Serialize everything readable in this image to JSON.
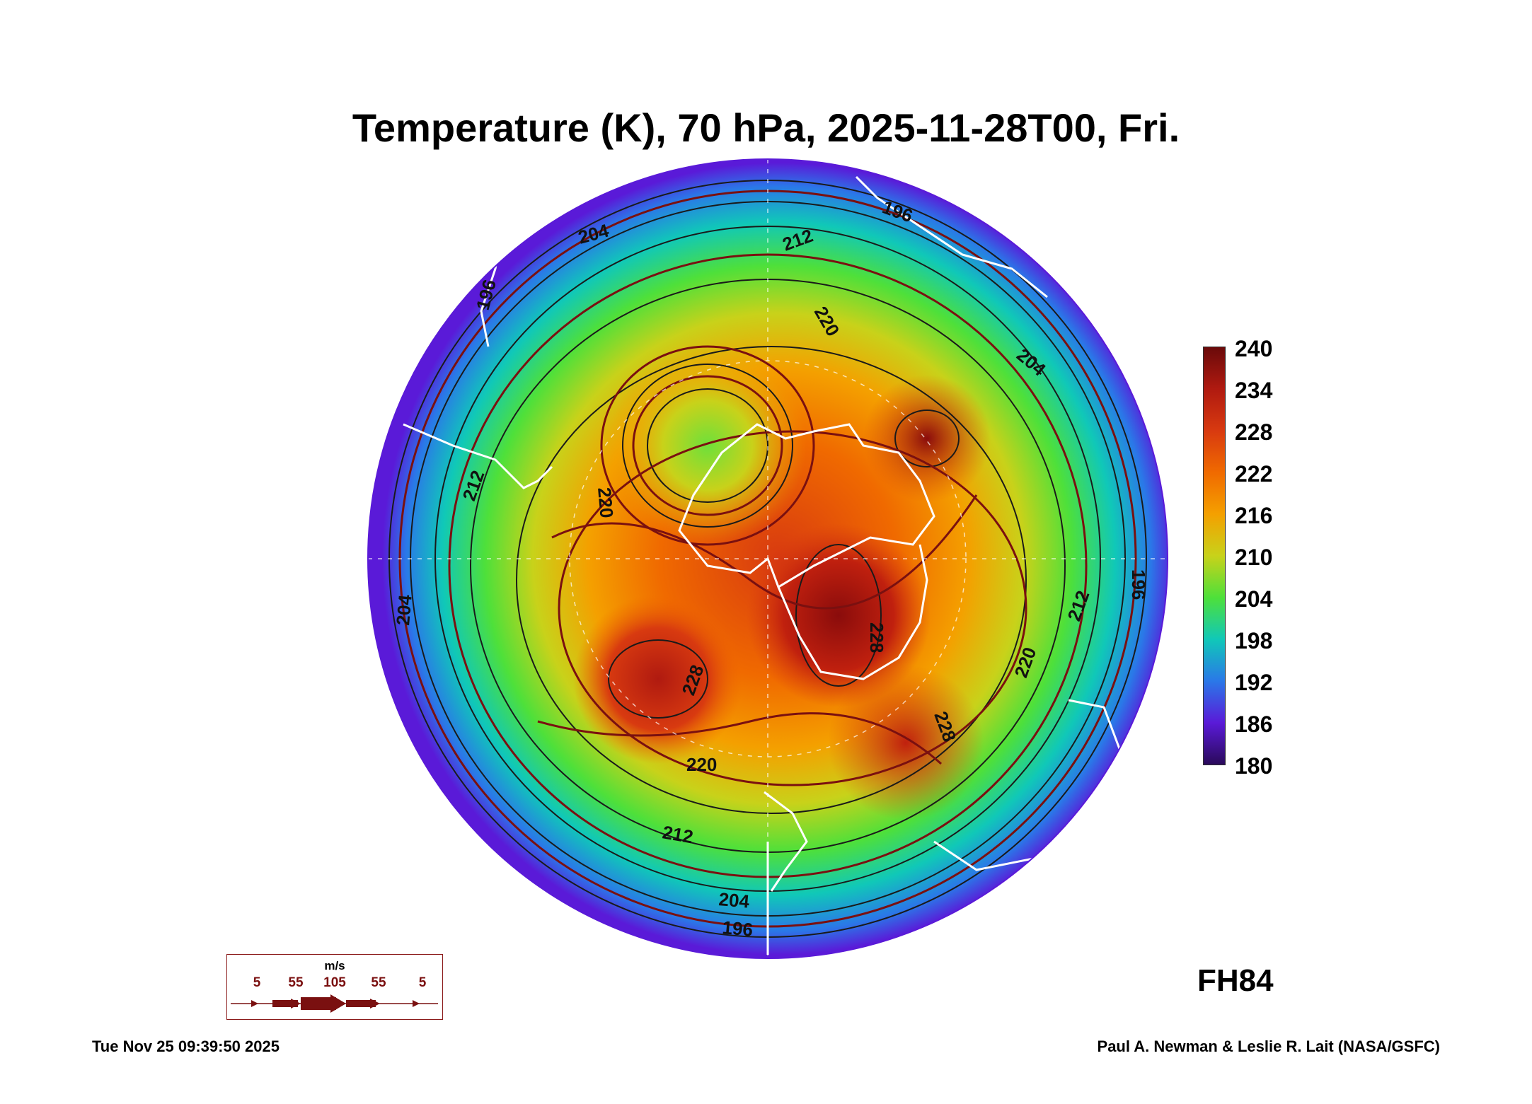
{
  "title": "Temperature (K), 70 hPa, 2025-11-28T00, Fri.",
  "forecast_hour": "FH84",
  "timestamp": "Tue Nov 25 09:39:50 2025",
  "credit": "Paul A. Newman & Leslie R. Lait (NASA/GSFC)",
  "colorbar": {
    "labels": [
      "240",
      "234",
      "228",
      "222",
      "216",
      "210",
      "204",
      "198",
      "192",
      "186",
      "180"
    ],
    "colors": [
      "#6a0a0a",
      "#b01a10",
      "#d83a10",
      "#f06a00",
      "#f4a000",
      "#c8d21a",
      "#4ee03a",
      "#10c8b8",
      "#2a78e8",
      "#5a1ad8",
      "#2a0a5a"
    ]
  },
  "contour_labels": [
    "196",
    "204",
    "212",
    "220",
    "228",
    "196",
    "204",
    "212",
    "220",
    "228",
    "220",
    "212",
    "204",
    "196",
    "196",
    "204",
    "212",
    "220",
    "228"
  ],
  "wind_key": {
    "unit": "m/s",
    "labels": [
      "5",
      "55",
      "105",
      "55",
      "5"
    ]
  },
  "colors": {
    "streamline": "#7a1010",
    "contour": "#1a1a1a",
    "coastline": "#ffffff"
  }
}
